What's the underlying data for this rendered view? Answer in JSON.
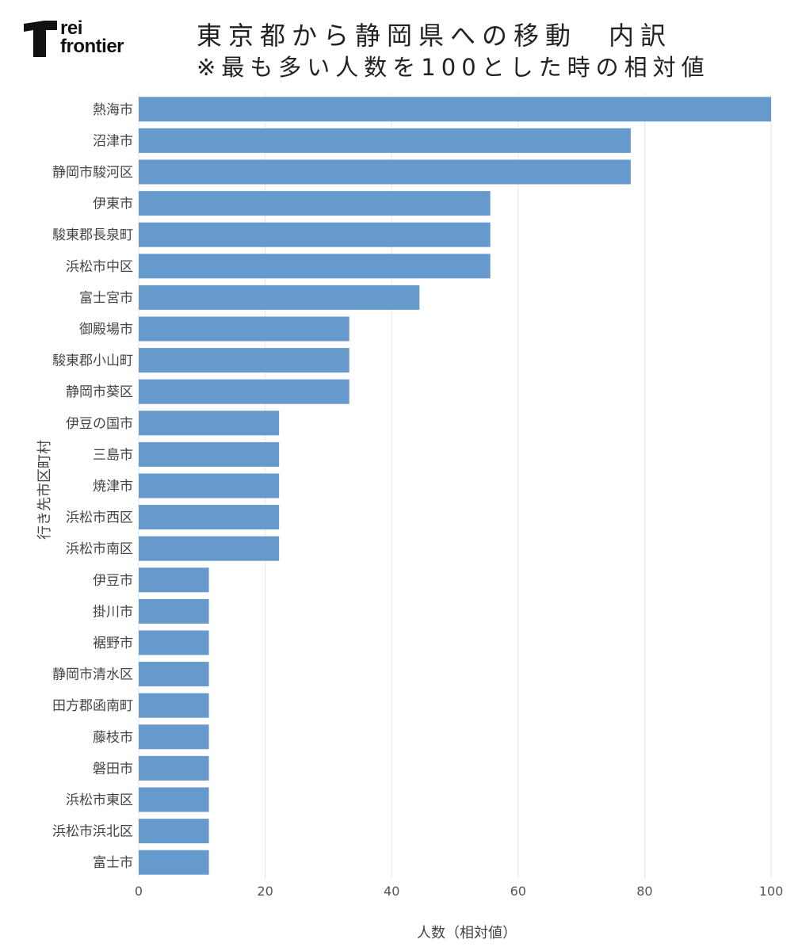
{
  "logo": {
    "line1": "rei",
    "line2": "frontier"
  },
  "title": "東京都から静岡県への移動　内訳",
  "subtitle": "※最も多い人数を100とした時の相対値",
  "colors": {
    "bar": "#6699cc",
    "grid": "#e6e6e6"
  },
  "chart_data": {
    "type": "bar",
    "orientation": "horizontal",
    "xlabel": "人数（相対値）",
    "ylabel": "行き先市区町村",
    "xlim": [
      0,
      100
    ],
    "xticks": [
      0,
      20,
      40,
      60,
      80,
      100
    ],
    "grid": true,
    "categories": [
      "熱海市",
      "沼津市",
      "静岡市駿河区",
      "伊東市",
      "駿東郡長泉町",
      "浜松市中区",
      "富士宮市",
      "御殿場市",
      "駿東郡小山町",
      "静岡市葵区",
      "伊豆の国市",
      "三島市",
      "焼津市",
      "浜松市西区",
      "浜松市南区",
      "伊豆市",
      "掛川市",
      "裾野市",
      "静岡市清水区",
      "田方郡函南町",
      "藤枝市",
      "磐田市",
      "浜松市東区",
      "浜松市浜北区",
      "富士市"
    ],
    "values": [
      100,
      77.8,
      77.8,
      55.6,
      55.6,
      55.6,
      44.4,
      33.3,
      33.3,
      33.3,
      22.2,
      22.2,
      22.2,
      22.2,
      22.2,
      11.1,
      11.1,
      11.1,
      11.1,
      11.1,
      11.1,
      11.1,
      11.1,
      11.1,
      11.1
    ]
  }
}
